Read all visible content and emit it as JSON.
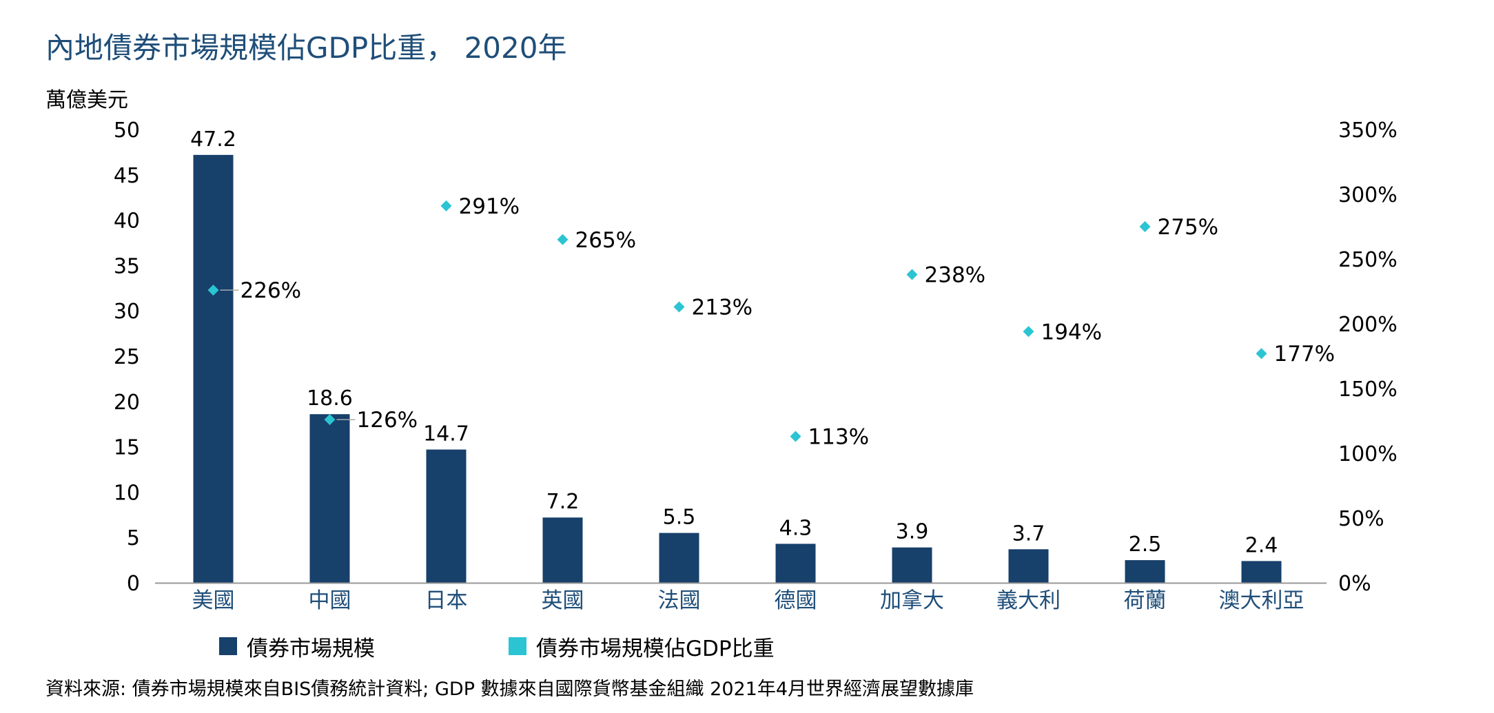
{
  "title": "內地債券市場規模佔GDP比重， 2020年",
  "unit_label": "萬億美元",
  "source": "資料來源: 債券市場規模來自BIS債務統計資料; GDP 數據來自國際貨幣基金組織 2021年4月世界經濟展望數據庫",
  "colors": {
    "bar": "#17406a",
    "marker": "#2bc4d3",
    "category_text": "#1f4e79",
    "axis": "#999999"
  },
  "chart_data": {
    "type": "bar",
    "title": "內地債券市場規模佔GDP比重， 2020年",
    "ylabel": "萬億美元",
    "categories": [
      "美國",
      "中國",
      "日本",
      "英國",
      "法國",
      "德國",
      "加拿大",
      "義大利",
      "荷蘭",
      "澳大利亞"
    ],
    "series": [
      {
        "name": "債券市場規模",
        "type": "bar",
        "axis": "left",
        "values": [
          47.2,
          18.6,
          14.7,
          7.2,
          5.5,
          4.3,
          3.9,
          3.7,
          2.5,
          2.4
        ],
        "labels": [
          "47.2",
          "18.6",
          "14.7",
          "7.2",
          "5.5",
          "4.3",
          "3.9",
          "3.7",
          "2.5",
          "2.4"
        ]
      },
      {
        "name": "債券市場規模佔GDP比重",
        "type": "scatter",
        "axis": "right",
        "values": [
          226,
          126,
          291,
          265,
          213,
          113,
          238,
          194,
          275,
          177
        ],
        "labels": [
          "226%",
          "126%",
          "291%",
          "265%",
          "213%",
          "113%",
          "238%",
          "194%",
          "275%",
          "177%"
        ]
      }
    ],
    "y_left": {
      "min": 0,
      "max": 50,
      "ticks": [
        "0",
        "5",
        "10",
        "15",
        "20",
        "25",
        "30",
        "35",
        "40",
        "45",
        "50"
      ]
    },
    "y_right": {
      "min": 0,
      "max": 350,
      "ticks": [
        "0%",
        "50%",
        "100%",
        "150%",
        "200%",
        "250%",
        "300%",
        "350%"
      ]
    },
    "grid": false,
    "legend_position": "bottom"
  }
}
